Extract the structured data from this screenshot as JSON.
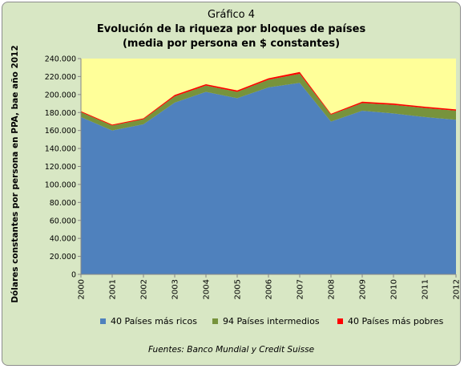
{
  "titles": {
    "line1": "Gráfico 4",
    "line2": "Evolución de la riqueza  por bloques de países",
    "line3": "(media por persona en $ constantes)"
  },
  "source": "Fuentes: Banco Mundial y Credit Suisse",
  "chart_data": {
    "type": "area",
    "stacked": true,
    "title": "Evolución de la riqueza  por bloques de países",
    "subtitle": "(media por persona en $ constantes)",
    "xlabel": "",
    "ylabel": "Dólares constantes  por persona  en PPA,  bae año 2012",
    "categories": [
      "2000",
      "2001",
      "2002",
      "2003",
      "2004",
      "2005",
      "2006",
      "2007",
      "2008",
      "2009",
      "2010",
      "2011",
      "2012"
    ],
    "ylim": [
      0,
      240000
    ],
    "yticks": [
      0,
      20000,
      40000,
      60000,
      80000,
      100000,
      120000,
      140000,
      160000,
      180000,
      200000,
      220000,
      240000
    ],
    "ytick_labels": [
      "0",
      "20.000",
      "40.000",
      "60.000",
      "80.000",
      "100.000",
      "120.000",
      "140.000",
      "160.000",
      "180.000",
      "200.000",
      "220.000",
      "240.000"
    ],
    "plot_background": "#ffff99",
    "legend_position": "bottom",
    "series": [
      {
        "name": "40 Países más ricos",
        "color": "#4f81bd",
        "values": [
          175000,
          160000,
          167000,
          191000,
          203000,
          196000,
          208000,
          213000,
          170000,
          182000,
          179000,
          175000,
          172000
        ]
      },
      {
        "name": "94  Países intermedios",
        "color": "#77933c",
        "values": [
          5500,
          5500,
          5500,
          7000,
          7000,
          7000,
          8500,
          10000,
          7500,
          8500,
          9500,
          10000,
          10000
        ]
      },
      {
        "name": "40 Países más pobres",
        "color": "#ff0000",
        "values": [
          1000,
          1000,
          1000,
          1500,
          1500,
          1500,
          1500,
          2000,
          1000,
          1500,
          1500,
          1500,
          1500
        ]
      }
    ]
  }
}
